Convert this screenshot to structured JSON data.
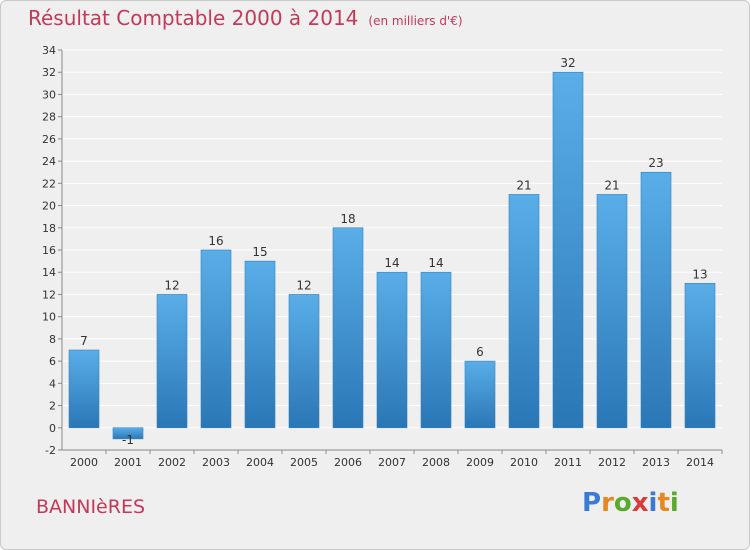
{
  "title": "Résultat Comptable 2000 à 2014",
  "subtitle": "(en milliers d'€)",
  "town": "BANNIèRES",
  "logo": {
    "text": "Proxiti",
    "colors": [
      "#3a7bd5",
      "#e8871e",
      "#5aaa2e",
      "#d93a3a",
      "#3a7bd5",
      "#e8871e",
      "#5aaa2e"
    ]
  },
  "colors": {
    "bar_top": "#5aaee8",
    "bar_bottom": "#2a77b5",
    "title": "#c4385a",
    "grid": "#ffffff",
    "plot_background": "#efefef"
  },
  "chart_data": {
    "type": "bar",
    "categories": [
      "2000",
      "2001",
      "2002",
      "2003",
      "2004",
      "2005",
      "2006",
      "2007",
      "2008",
      "2009",
      "2010",
      "2011",
      "2012",
      "2013",
      "2014"
    ],
    "values": [
      7,
      -1,
      12,
      16,
      15,
      12,
      18,
      14,
      14,
      6,
      21,
      32,
      21,
      23,
      13
    ],
    "data_labels": [
      "7",
      "-1",
      "12",
      "16",
      "15",
      "12",
      "18",
      "14",
      "14",
      "6",
      "21",
      "32",
      "21",
      "23",
      "13"
    ],
    "title": "Résultat Comptable 2000 à 2014",
    "ylim": [
      -2,
      34
    ],
    "yticks": [
      -2,
      0,
      2,
      4,
      6,
      8,
      10,
      12,
      14,
      16,
      18,
      20,
      22,
      24,
      26,
      28,
      30,
      32,
      34
    ],
    "grid": true
  }
}
